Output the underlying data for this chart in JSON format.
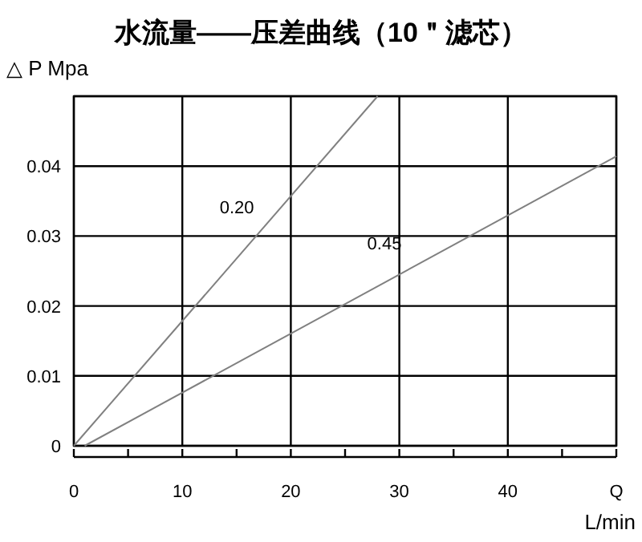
{
  "chart_data": {
    "type": "line",
    "title": "水流量——压差曲线（10＂滤芯）",
    "xlabel": "L/min",
    "ylabel": "△ P Mpa",
    "series": [
      {
        "name": "0.20",
        "color": "#808080",
        "x": [
          0,
          28
        ],
        "values": [
          0,
          0.05
        ]
      },
      {
        "name": "0.45",
        "color": "#808080",
        "x": [
          1,
          50
        ],
        "values": [
          0,
          0.0414
        ]
      }
    ],
    "xlim": [
      0,
      50
    ],
    "ylim": [
      0,
      0.05
    ],
    "xticks": [
      0,
      {
        "value": 5,
        "label": null
      },
      10,
      {
        "value": 15,
        "label": null
      },
      20,
      {
        "value": 25,
        "label": null
      },
      30,
      {
        "value": 35,
        "label": null
      },
      40,
      {
        "value": 45,
        "label": null
      },
      {
        "value": 50,
        "label": "Q"
      }
    ],
    "yticks": [
      0,
      0.01,
      0.02,
      0.03,
      0.04,
      {
        "value": 0.05,
        "label": null
      }
    ],
    "grid": true,
    "marker": "none",
    "line_style": "solid"
  }
}
